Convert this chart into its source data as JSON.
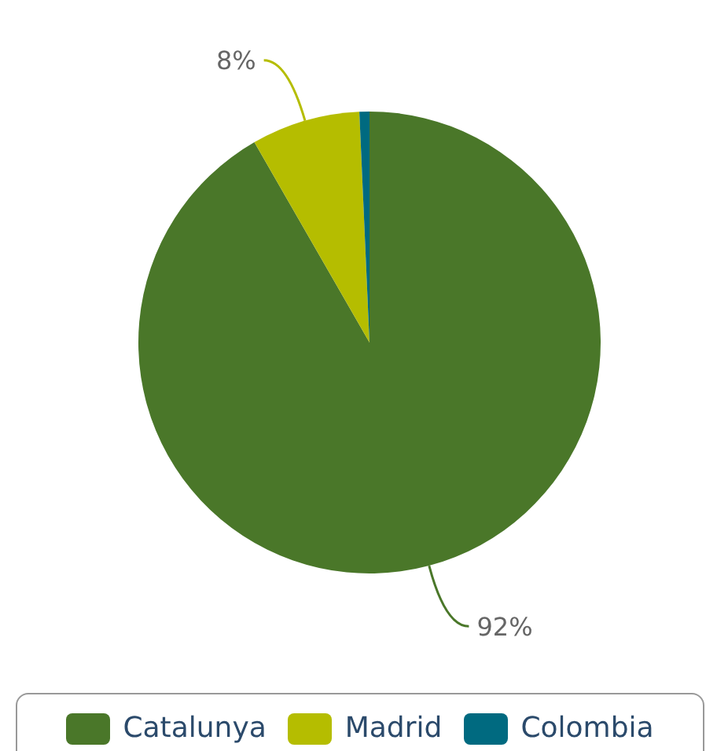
{
  "chart_data": {
    "type": "pie",
    "categories": [
      "Catalunya",
      "Madrid",
      "Colombia"
    ],
    "values": [
      91.7,
      7.6,
      0.7
    ],
    "colors": [
      "#4a7729",
      "#b5bd00",
      "#006a80"
    ],
    "value_labels": [
      "92%",
      "8%",
      null
    ],
    "legend": "bottom"
  }
}
